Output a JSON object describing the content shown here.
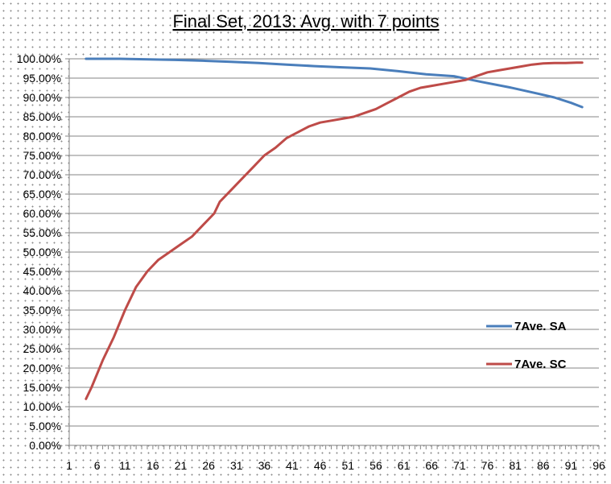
{
  "chart_data": {
    "type": "line",
    "title": "Final Set, 2013: Avg. with 7 points",
    "xlabel": "",
    "ylabel": "",
    "x_ticks": [
      "1",
      "6",
      "11",
      "16",
      "21",
      "26",
      "31",
      "36",
      "41",
      "46",
      "51",
      "56",
      "61",
      "66",
      "71",
      "76",
      "81",
      "86",
      "91",
      "96"
    ],
    "y_ticks": [
      "0.00%",
      "5.00%",
      "10.00%",
      "15.00%",
      "20.00%",
      "25.00%",
      "30.00%",
      "35.00%",
      "40.00%",
      "45.00%",
      "50.00%",
      "55.00%",
      "60.00%",
      "65.00%",
      "70.00%",
      "75.00%",
      "80.00%",
      "85.00%",
      "90.00%",
      "95.00%",
      "100.00%"
    ],
    "xlim": [
      1,
      96
    ],
    "ylim": [
      0,
      1
    ],
    "grid": "horizontal",
    "legend": "right",
    "series": [
      {
        "name": "7Ave. SA",
        "color": "#4a7ebb",
        "x": [
          4,
          10,
          20,
          25,
          30,
          35,
          40,
          45,
          50,
          55,
          60,
          65,
          70,
          75,
          80,
          85,
          88,
          91,
          93
        ],
        "values": [
          1.0,
          1.0,
          0.997,
          0.995,
          0.992,
          0.989,
          0.985,
          0.981,
          0.978,
          0.975,
          0.968,
          0.96,
          0.955,
          0.94,
          0.926,
          0.91,
          0.9,
          0.886,
          0.875
        ]
      },
      {
        "name": "7Ave. SC",
        "color": "#be4b48",
        "x": [
          4,
          5,
          7,
          9,
          11,
          13,
          15,
          17,
          19,
          21,
          23,
          25,
          27,
          28,
          30,
          32,
          34,
          36,
          38,
          40,
          42,
          44,
          46,
          48,
          50,
          52,
          54,
          56,
          58,
          60,
          62,
          64,
          66,
          68,
          70,
          72,
          74,
          76,
          78,
          80,
          82,
          84,
          86,
          88,
          90,
          92,
          93
        ],
        "values": [
          0.12,
          0.15,
          0.22,
          0.28,
          0.35,
          0.41,
          0.45,
          0.48,
          0.5,
          0.52,
          0.54,
          0.57,
          0.6,
          0.63,
          0.66,
          0.69,
          0.72,
          0.75,
          0.77,
          0.795,
          0.81,
          0.825,
          0.835,
          0.84,
          0.845,
          0.85,
          0.86,
          0.87,
          0.885,
          0.9,
          0.915,
          0.925,
          0.93,
          0.935,
          0.94,
          0.945,
          0.955,
          0.965,
          0.97,
          0.975,
          0.98,
          0.985,
          0.988,
          0.989,
          0.989,
          0.99,
          0.99
        ]
      }
    ]
  }
}
